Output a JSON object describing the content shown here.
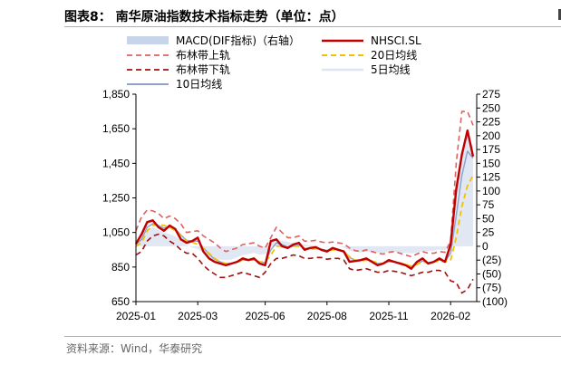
{
  "header": {
    "title": "图表8： 南华原油指数技术指标走势（单位：点）"
  },
  "footer": {
    "source": "资料来源：Wind，华泰研究"
  },
  "chart_data": {
    "type": "line",
    "title": "图表8： 南华原油指数技术指标走势（单位：点）",
    "x_ticks": [
      "2025-01",
      "2025-03",
      "2025-06",
      "2025-08",
      "2025-11",
      "2026-02"
    ],
    "x_tick_index": [
      0,
      11,
      23,
      34,
      45,
      56
    ],
    "y_left_ticks": [
      "650",
      "850",
      "1,050",
      "1,250",
      "1,450",
      "1,650",
      "1,850"
    ],
    "y_left_range": [
      650,
      1850
    ],
    "y_right_ticks": [
      "(100)",
      "(75)",
      "(50)",
      "(25)",
      "0",
      "25",
      "50",
      "75",
      "100",
      "125",
      "150",
      "175",
      "200",
      "225",
      "250",
      "275"
    ],
    "y_right_range": [
      -100,
      275
    ],
    "legend_position": "top",
    "colors": {
      "macd": "#c8d4ea",
      "nhsci": "#c00000",
      "upper": "#e06060",
      "ma20": "#f2c200",
      "lower": "#a01010",
      "ma5": "#dde6f4",
      "ma10": "#8ea4cc"
    },
    "legend": {
      "macd": "MACD(DIF指标)（右轴）",
      "nhsci": "NHSCI.SL",
      "upper": "布林带上轨",
      "ma20": "20日均线",
      "lower": "布林带下轨",
      "ma5": "5日均线",
      "ma10": "10日均线"
    },
    "series": {
      "nhsci": [
        985,
        1040,
        1110,
        1120,
        1080,
        1060,
        1090,
        1070,
        1010,
        990,
        1000,
        1020,
        940,
        900,
        880,
        870,
        860,
        870,
        880,
        900,
        890,
        900,
        870,
        860,
        1000,
        1010,
        970,
        960,
        980,
        990,
        950,
        960,
        965,
        950,
        940,
        960,
        950,
        940,
        880,
        885,
        890,
        900,
        880,
        860,
        870,
        890,
        880,
        870,
        860,
        840,
        880,
        900,
        870,
        880,
        900,
        880,
        980,
        1300,
        1500,
        1640,
        1490
      ],
      "upper": [
        1060,
        1140,
        1180,
        1175,
        1160,
        1130,
        1145,
        1130,
        1100,
        1050,
        1055,
        1060,
        1030,
        1010,
        990,
        960,
        940,
        950,
        960,
        980,
        985,
        990,
        970,
        960,
        1020,
        1080,
        1050,
        1020,
        1020,
        1030,
        1000,
        1000,
        1005,
        995,
        990,
        995,
        990,
        985,
        960,
        945,
        940,
        950,
        940,
        930,
        925,
        935,
        940,
        930,
        920,
        910,
        925,
        940,
        930,
        930,
        940,
        935,
        1000,
        1450,
        1750,
        1750,
        1670
      ],
      "lower": [
        920,
        940,
        1000,
        1030,
        1040,
        1030,
        1000,
        980,
        950,
        930,
        930,
        900,
        860,
        830,
        810,
        790,
        790,
        800,
        810,
        820,
        810,
        800,
        790,
        820,
        870,
        900,
        900,
        910,
        920,
        915,
        900,
        900,
        905,
        905,
        895,
        900,
        900,
        890,
        840,
        830,
        835,
        840,
        830,
        820,
        820,
        830,
        825,
        820,
        810,
        800,
        810,
        820,
        820,
        830,
        830,
        820,
        770,
        760,
        700,
        720,
        780
      ],
      "ma20": [
        970,
        990,
        1060,
        1090,
        1095,
        1090,
        1080,
        1060,
        1030,
        1000,
        995,
        980,
        960,
        930,
        900,
        880,
        870,
        870,
        880,
        890,
        890,
        890,
        880,
        880,
        920,
        970,
        970,
        960,
        970,
        970,
        955,
        955,
        955,
        950,
        945,
        950,
        948,
        940,
        910,
        890,
        885,
        890,
        885,
        875,
        870,
        880,
        880,
        875,
        865,
        855,
        865,
        880,
        875,
        880,
        885,
        880,
        890,
        1020,
        1200,
        1320,
        1380
      ],
      "ma5": [
        990,
        1030,
        1100,
        1110,
        1085,
        1065,
        1085,
        1075,
        1020,
        995,
        1000,
        1010,
        950,
        910,
        885,
        875,
        865,
        870,
        880,
        895,
        890,
        895,
        875,
        870,
        990,
        1005,
        975,
        965,
        975,
        985,
        955,
        960,
        962,
        952,
        945,
        958,
        950,
        942,
        890,
        885,
        888,
        898,
        882,
        865,
        868,
        885,
        880,
        872,
        862,
        848,
        875,
        895,
        875,
        880,
        895,
        882,
        960,
        1250,
        1470,
        1600,
        1510
      ],
      "ma10": [
        980,
        1010,
        1080,
        1100,
        1090,
        1075,
        1080,
        1070,
        1035,
        1005,
        1000,
        1000,
        960,
        925,
        895,
        880,
        870,
        870,
        878,
        890,
        890,
        892,
        880,
        875,
        950,
        990,
        980,
        965,
        970,
        978,
        958,
        958,
        958,
        952,
        946,
        952,
        950,
        943,
        905,
        890,
        888,
        894,
        885,
        870,
        870,
        882,
        880,
        874,
        864,
        852,
        868,
        885,
        876,
        880,
        890,
        882,
        930,
        1150,
        1380,
        1520,
        1480
      ],
      "macd": [
        5,
        15,
        30,
        35,
        30,
        25,
        22,
        18,
        10,
        2,
        -2,
        -5,
        -12,
        -18,
        -22,
        -24,
        -25,
        -24,
        -20,
        -16,
        -14,
        -12,
        -15,
        -14,
        5,
        12,
        10,
        8,
        6,
        6,
        3,
        2,
        2,
        0,
        -1,
        0,
        0,
        -2,
        -8,
        -10,
        -11,
        -10,
        -11,
        -12,
        -12,
        -10,
        -10,
        -11,
        -12,
        -13,
        -11,
        -9,
        -9,
        -8,
        -6,
        -7,
        5,
        60,
        150,
        200,
        180
      ]
    }
  }
}
